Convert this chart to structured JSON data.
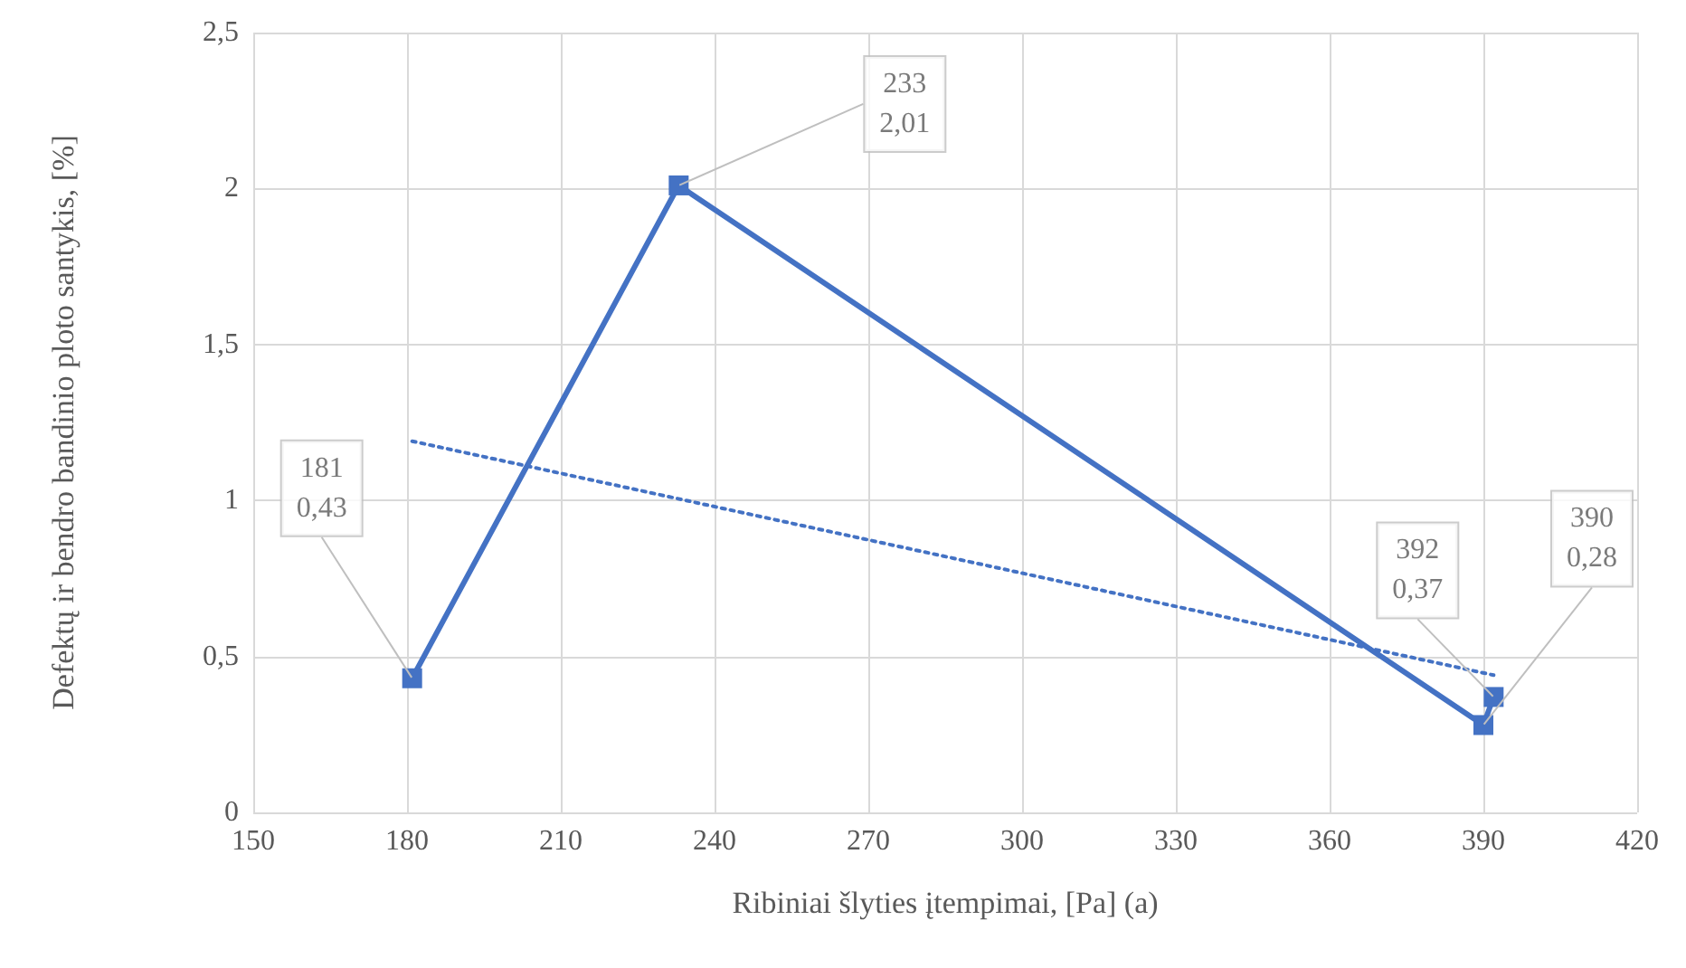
{
  "chart_data": {
    "type": "line",
    "xlabel": "Ribiniai šlyties įtempimai, [Pa] (a)",
    "ylabel": "Defektų ir bendro bandinio ploto santykis, [%]",
    "series": [
      {
        "color": "#4472c4",
        "x": [
          181,
          233,
          390,
          392
        ],
        "values": [
          0.43,
          2.01,
          0.28,
          0.37
        ],
        "marker": "square",
        "line_style": "solid"
      },
      {
        "color": "#4472c4",
        "x": [
          181,
          392
        ],
        "values": [
          1.19,
          0.44
        ],
        "marker": "none",
        "line_style": "dotted"
      }
    ],
    "xlim": [
      150,
      420
    ],
    "xticks": [
      150,
      180,
      210,
      240,
      270,
      300,
      330,
      360,
      390,
      420
    ],
    "ylim": [
      0,
      2.5
    ],
    "yticks": [
      0,
      {
        "value": 0.5,
        "label": "0,5"
      },
      1,
      {
        "value": 1.5,
        "label": "1,5"
      },
      2,
      {
        "value": 2.5,
        "label": "2,5"
      }
    ],
    "grid": true,
    "annotations": [
      {
        "text": "181\n0,43",
        "x": 181,
        "y": 0.43
      },
      {
        "text": "233\n2,01",
        "x": 233,
        "y": 2.01
      },
      {
        "text": "392\n0,37",
        "x": 392,
        "y": 0.37
      },
      {
        "text": "390\n0,28",
        "x": 390,
        "y": 0.28
      }
    ]
  }
}
